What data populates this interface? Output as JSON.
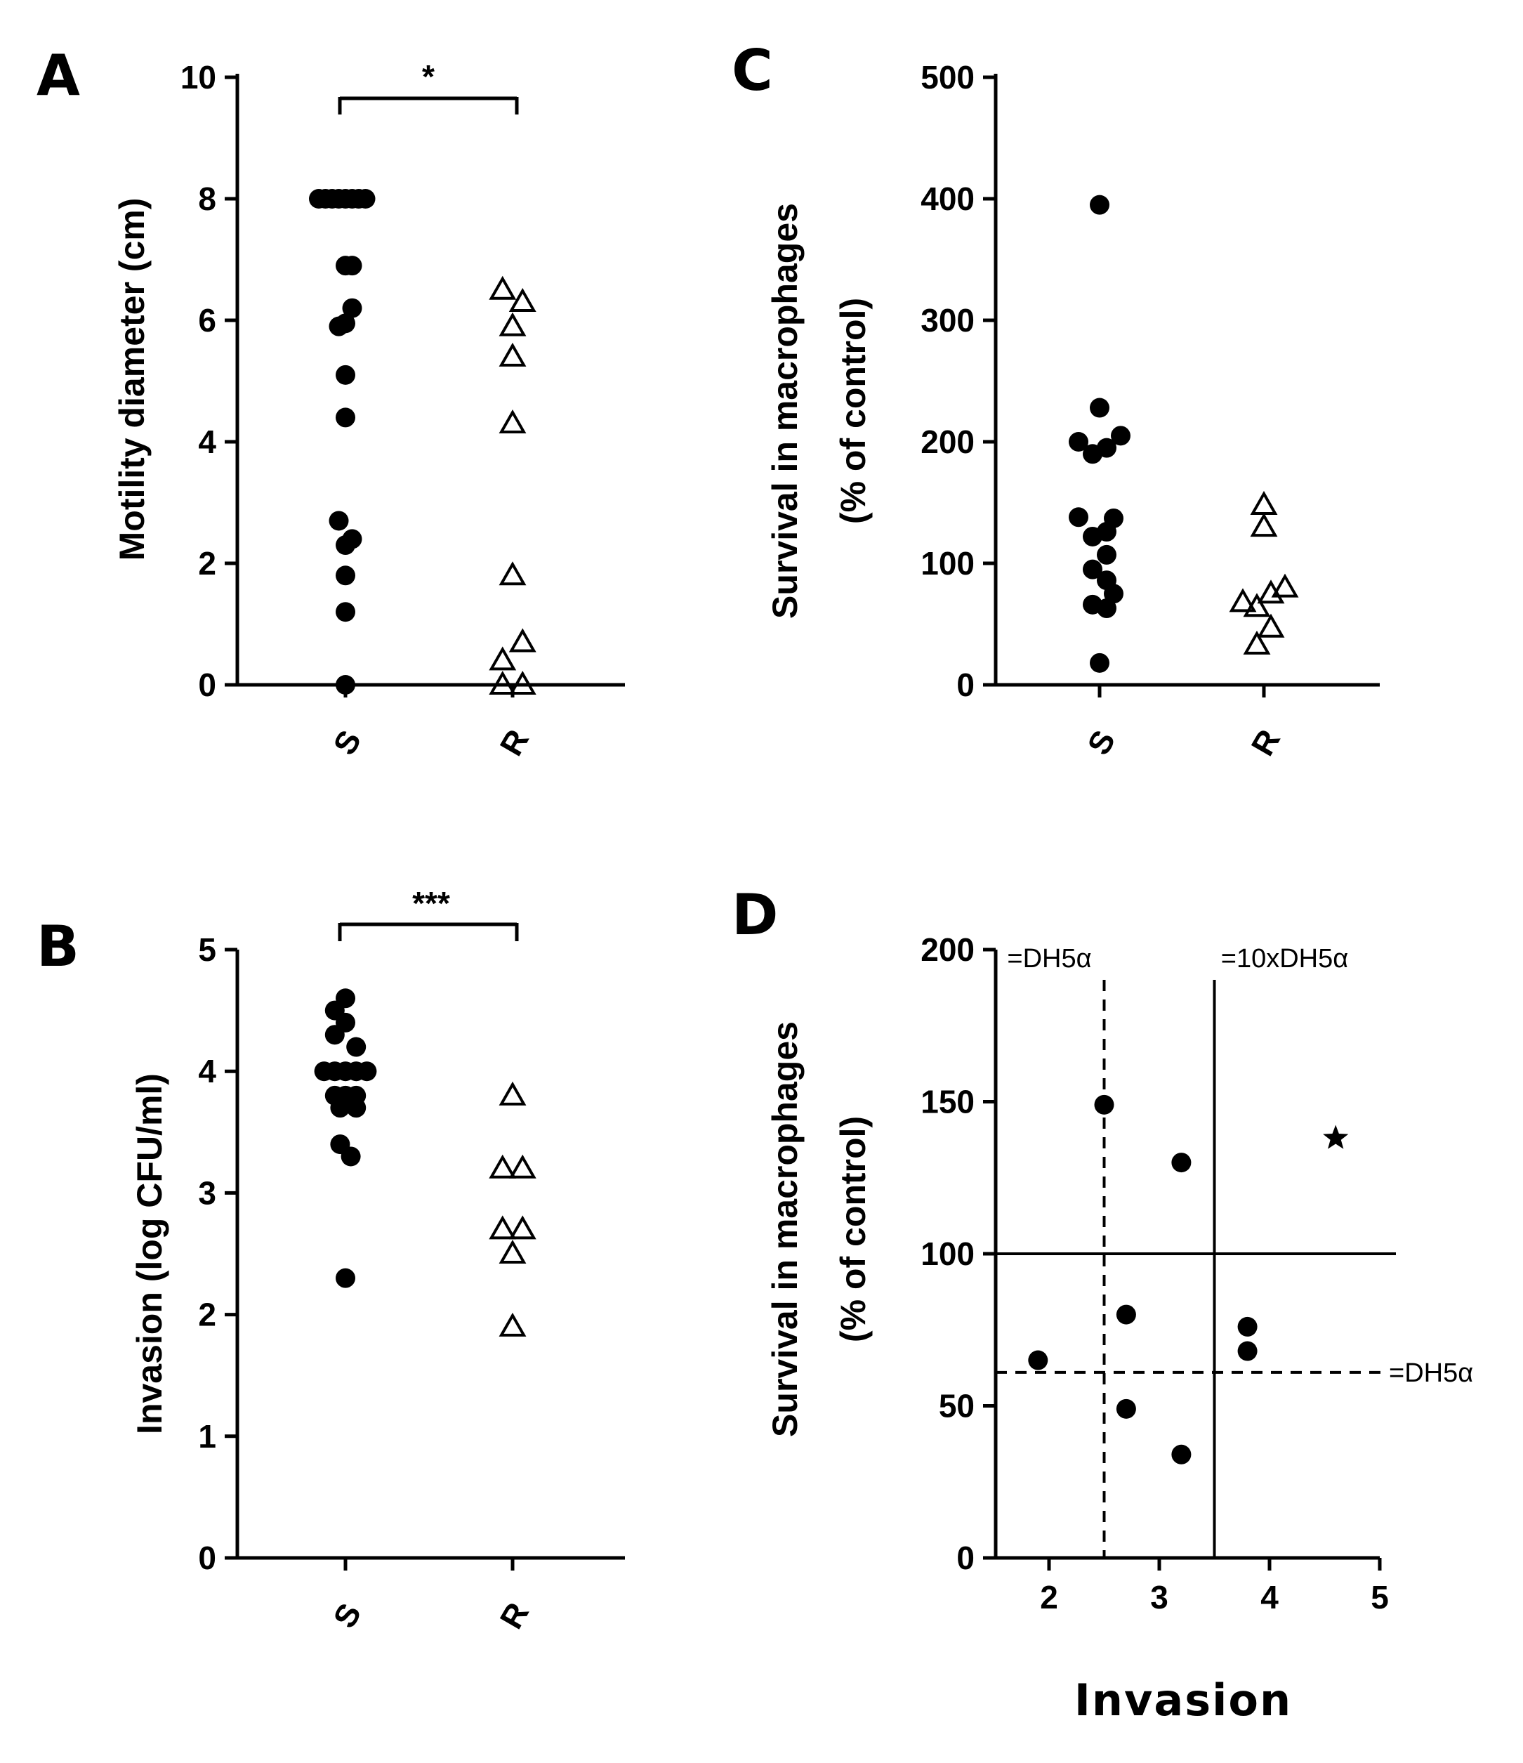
{
  "chart_data": [
    {
      "panel": "A",
      "type": "scatter",
      "categories": [
        "S",
        "R"
      ],
      "ylabel": "Motility diameter (cm)",
      "xlabel": "",
      "ylim": [
        0,
        10
      ],
      "yticks": [
        0,
        2,
        4,
        6,
        8,
        10
      ],
      "series": [
        {
          "name": "S",
          "marker": "filled-circle",
          "points": [
            [
              -0.4,
              8
            ],
            [
              -0.3,
              8
            ],
            [
              -0.2,
              8
            ],
            [
              -0.1,
              8
            ],
            [
              0,
              8
            ],
            [
              0.1,
              8
            ],
            [
              0.2,
              8
            ],
            [
              0.3,
              8
            ],
            [
              0,
              6.9
            ],
            [
              0.1,
              6.9
            ],
            [
              0.1,
              6.2
            ],
            [
              -0.1,
              5.9
            ],
            [
              0,
              5.95
            ],
            [
              0,
              5.1
            ],
            [
              0,
              4.4
            ],
            [
              -0.1,
              2.7
            ],
            [
              0,
              2.3
            ],
            [
              0.1,
              2.4
            ],
            [
              0,
              1.8
            ],
            [
              0,
              1.2
            ],
            [
              0,
              0
            ]
          ]
        },
        {
          "name": "R",
          "marker": "open-triangle",
          "points": [
            [
              -0.15,
              6.5
            ],
            [
              0.15,
              6.3
            ],
            [
              0,
              5.9
            ],
            [
              0,
              5.4
            ],
            [
              0,
              4.3
            ],
            [
              0,
              1.8
            ],
            [
              -0.15,
              0.4
            ],
            [
              0.15,
              0.7
            ],
            [
              -0.15,
              0
            ],
            [
              0.15,
              0
            ]
          ]
        }
      ],
      "significance": {
        "label": "*",
        "groups": [
          "S",
          "R"
        ],
        "level": 9.6
      }
    },
    {
      "panel": "B",
      "type": "scatter",
      "categories": [
        "S",
        "R"
      ],
      "ylabel": "Invasion (log CFU/ml)",
      "xlabel": "",
      "ylim": [
        0,
        5
      ],
      "yticks": [
        0,
        1,
        2,
        3,
        4,
        5
      ],
      "series": [
        {
          "name": "S",
          "marker": "filled-circle",
          "points": [
            [
              -0.16,
              4.5
            ],
            [
              0,
              4.6
            ],
            [
              -0.16,
              4.3
            ],
            [
              0,
              4.4
            ],
            [
              0.16,
              4.2
            ],
            [
              -0.32,
              4.0
            ],
            [
              -0.16,
              4.0
            ],
            [
              0,
              4.0
            ],
            [
              0.16,
              4.0
            ],
            [
              0.32,
              4.0
            ],
            [
              -0.16,
              3.8
            ],
            [
              0,
              3.8
            ],
            [
              0.16,
              3.8
            ],
            [
              -0.08,
              3.7
            ],
            [
              0.16,
              3.7
            ],
            [
              -0.08,
              3.4
            ],
            [
              0.08,
              3.3
            ],
            [
              0,
              2.3
            ]
          ]
        },
        {
          "name": "R",
          "marker": "open-triangle",
          "points": [
            [
              0,
              3.8
            ],
            [
              -0.15,
              3.2
            ],
            [
              0.15,
              3.2
            ],
            [
              -0.15,
              2.7
            ],
            [
              0.15,
              2.7
            ],
            [
              0,
              2.5
            ],
            [
              0,
              1.9
            ]
          ]
        }
      ],
      "significance": {
        "label": "***",
        "groups": [
          "S",
          "R"
        ],
        "level": 4.8
      }
    },
    {
      "panel": "C",
      "type": "scatter",
      "categories": [
        "S",
        "R"
      ],
      "ylabel": [
        "Survival in macrophages",
        "(% of control)"
      ],
      "xlabel": "",
      "ylim": [
        0,
        500
      ],
      "yticks": [
        0,
        100,
        200,
        300,
        400,
        500
      ],
      "series": [
        {
          "name": "S",
          "marker": "filled-circle",
          "points": [
            [
              0,
              395
            ],
            [
              0,
              228
            ],
            [
              -0.3,
              200
            ],
            [
              -0.1,
              190
            ],
            [
              0.1,
              195
            ],
            [
              0.3,
              205
            ],
            [
              -0.3,
              138
            ],
            [
              0.1,
              126
            ],
            [
              0.2,
              137
            ],
            [
              -0.1,
              122
            ],
            [
              0.1,
              107
            ],
            [
              -0.1,
              95
            ],
            [
              0.1,
              86
            ],
            [
              0.2,
              75
            ],
            [
              -0.1,
              66
            ],
            [
              0.1,
              63
            ],
            [
              0,
              18
            ]
          ]
        },
        {
          "name": "R",
          "marker": "open-triangle",
          "points": [
            [
              0,
              148
            ],
            [
              0,
              130
            ],
            [
              -0.3,
              68
            ],
            [
              -0.1,
              64
            ],
            [
              0.1,
              75
            ],
            [
              0.3,
              80
            ],
            [
              -0.1,
              33
            ],
            [
              0.1,
              47
            ]
          ]
        }
      ]
    },
    {
      "panel": "D",
      "type": "scatter",
      "xlabel": "Invasion",
      "ylabel": [
        "Survival in macrophages",
        "(% of control)"
      ],
      "xlim": [
        1.55,
        5
      ],
      "xticks": [
        2,
        3,
        4,
        5
      ],
      "ylim": [
        0,
        200
      ],
      "yticks": [
        0,
        50,
        100,
        150,
        200
      ],
      "points": [
        [
          2.5,
          149
        ],
        [
          3.2,
          130
        ],
        [
          2.7,
          80
        ],
        [
          1.9,
          65
        ],
        [
          2.7,
          49
        ],
        [
          3.2,
          34
        ],
        [
          3.8,
          76
        ],
        [
          3.8,
          68
        ]
      ],
      "star_point": [
        4.6,
        138
      ],
      "reference_lines": [
        {
          "orientation": "vertical",
          "value": 2.5,
          "style": "dashed",
          "label": "=DH5α"
        },
        {
          "orientation": "vertical",
          "value": 3.5,
          "style": "solid",
          "label": "=10xDH5α"
        },
        {
          "orientation": "horizontal",
          "value": 100,
          "style": "solid",
          "label": ""
        },
        {
          "orientation": "horizontal",
          "value": 61,
          "style": "dashed",
          "label": "=DH5α"
        }
      ]
    }
  ]
}
